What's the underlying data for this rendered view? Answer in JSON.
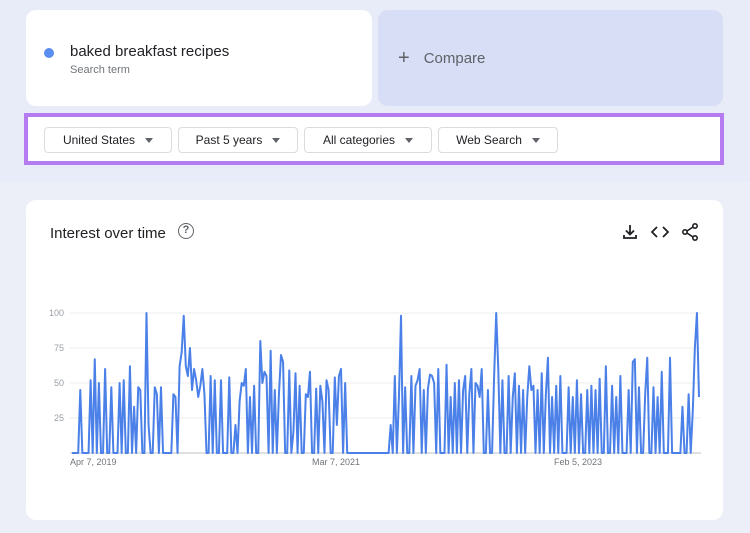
{
  "search_term": {
    "title": "baked breakfast recipes",
    "subtitle": "Search term",
    "color": "#5a8ef0"
  },
  "compare": {
    "label": "Compare"
  },
  "filters": [
    {
      "label": "United States"
    },
    {
      "label": "Past 5 years"
    },
    {
      "label": "All categories"
    },
    {
      "label": "Web Search"
    }
  ],
  "chart_header": {
    "title": "Interest over time",
    "icons": [
      "help-icon",
      "download-icon",
      "embed-icon",
      "share-icon"
    ]
  },
  "chart_data": {
    "type": "line",
    "title": "Interest over time",
    "xlabel": "",
    "ylabel": "",
    "ylim": [
      0,
      100
    ],
    "y_ticks": [
      25,
      50,
      75,
      100
    ],
    "x_tick_labels": [
      "Apr 7, 2019",
      "Mar 7, 2021",
      "Feb 5, 2023"
    ],
    "grid": true,
    "series": [
      {
        "color": "#4a80e8",
        "values": [
          0,
          0,
          0,
          0,
          45,
          0,
          0,
          0,
          0,
          52,
          0,
          67,
          0,
          50,
          0,
          0,
          60,
          0,
          0,
          47,
          0,
          0,
          0,
          50,
          0,
          52,
          0,
          0,
          62,
          0,
          33,
          0,
          47,
          45,
          0,
          0,
          100,
          20,
          0,
          0,
          47,
          42,
          0,
          47,
          0,
          0,
          0,
          0,
          0,
          42,
          40,
          0,
          62,
          72,
          98,
          62,
          55,
          75,
          45,
          60,
          52,
          40,
          48,
          60,
          42,
          0,
          0,
          55,
          0,
          52,
          0,
          0,
          52,
          0,
          0,
          0,
          54,
          0,
          0,
          20,
          0,
          37,
          50,
          48,
          60,
          0,
          40,
          0,
          48,
          0,
          0,
          80,
          50,
          58,
          55,
          0,
          73,
          0,
          45,
          0,
          42,
          70,
          65,
          0,
          0,
          59,
          0,
          15,
          57,
          0,
          48,
          0,
          0,
          42,
          40,
          58,
          0,
          0,
          46,
          0,
          48,
          37,
          0,
          52,
          45,
          0,
          0,
          54,
          20,
          55,
          60,
          0,
          50,
          0,
          0,
          0,
          0,
          0,
          0,
          0,
          0,
          0,
          0,
          0,
          0,
          0,
          0,
          0,
          0,
          0,
          0,
          0,
          0,
          0,
          20,
          0,
          55,
          0,
          40,
          98,
          0,
          47,
          0,
          0,
          55,
          0,
          48,
          52,
          60,
          0,
          45,
          0,
          46,
          56,
          55,
          50,
          0,
          60,
          0,
          0,
          0,
          63,
          0,
          40,
          0,
          50,
          0,
          52,
          0,
          45,
          55,
          0,
          42,
          60,
          0,
          50,
          48,
          40,
          60,
          0,
          0,
          45,
          0,
          0,
          55,
          100,
          60,
          0,
          52,
          0,
          0,
          55,
          0,
          40,
          57,
          0,
          48,
          0,
          45,
          0,
          40,
          62,
          45,
          48,
          0,
          45,
          0,
          57,
          0,
          42,
          68,
          0,
          40,
          0,
          48,
          0,
          55,
          0,
          0,
          0,
          47,
          0,
          40,
          0,
          52,
          0,
          42,
          0,
          0,
          45,
          0,
          48,
          0,
          45,
          0,
          53,
          0,
          0,
          62,
          0,
          0,
          48,
          0,
          40,
          0,
          55,
          0,
          0,
          0,
          45,
          0,
          65,
          67,
          0,
          47,
          0,
          0,
          42,
          68,
          0,
          0,
          47,
          0,
          40,
          0,
          58,
          0,
          0,
          0,
          68,
          0,
          0,
          0,
          0,
          0,
          33,
          0,
          0,
          42,
          0,
          30,
          75,
          100,
          40
        ]
      }
    ]
  }
}
